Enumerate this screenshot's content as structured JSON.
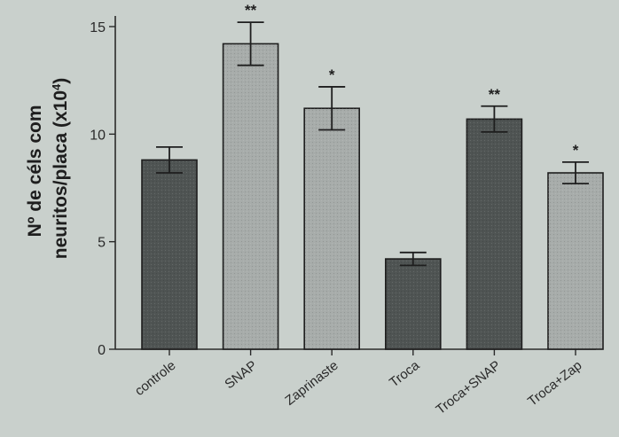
{
  "chart_data": {
    "type": "bar",
    "ylabel_line1": "Nº de céls com",
    "ylabel_line2": "neuritos/placa (x10",
    "ylabel_exponent": "4",
    "ylabel_close": ")",
    "ylim": [
      0,
      15
    ],
    "yticks": [
      "0",
      "5",
      "10",
      "15"
    ],
    "categories": [
      "controle",
      "SNAP",
      "Zaprinaste",
      "Troca",
      "Troca+SNAP",
      "Troca+Zap"
    ],
    "values": [
      8.8,
      14.2,
      11.2,
      4.2,
      10.7,
      8.2
    ],
    "errors": [
      0.6,
      1.0,
      1.0,
      0.3,
      0.6,
      0.5
    ],
    "significance": [
      "",
      "**",
      "*",
      "",
      "**",
      "*"
    ],
    "colors": {
      "dark": "#4f5453",
      "light": "#a7acaa",
      "axis": "#2a2a2a"
    },
    "bar_shades": [
      "dark",
      "light",
      "light",
      "dark",
      "dark",
      "light"
    ]
  }
}
